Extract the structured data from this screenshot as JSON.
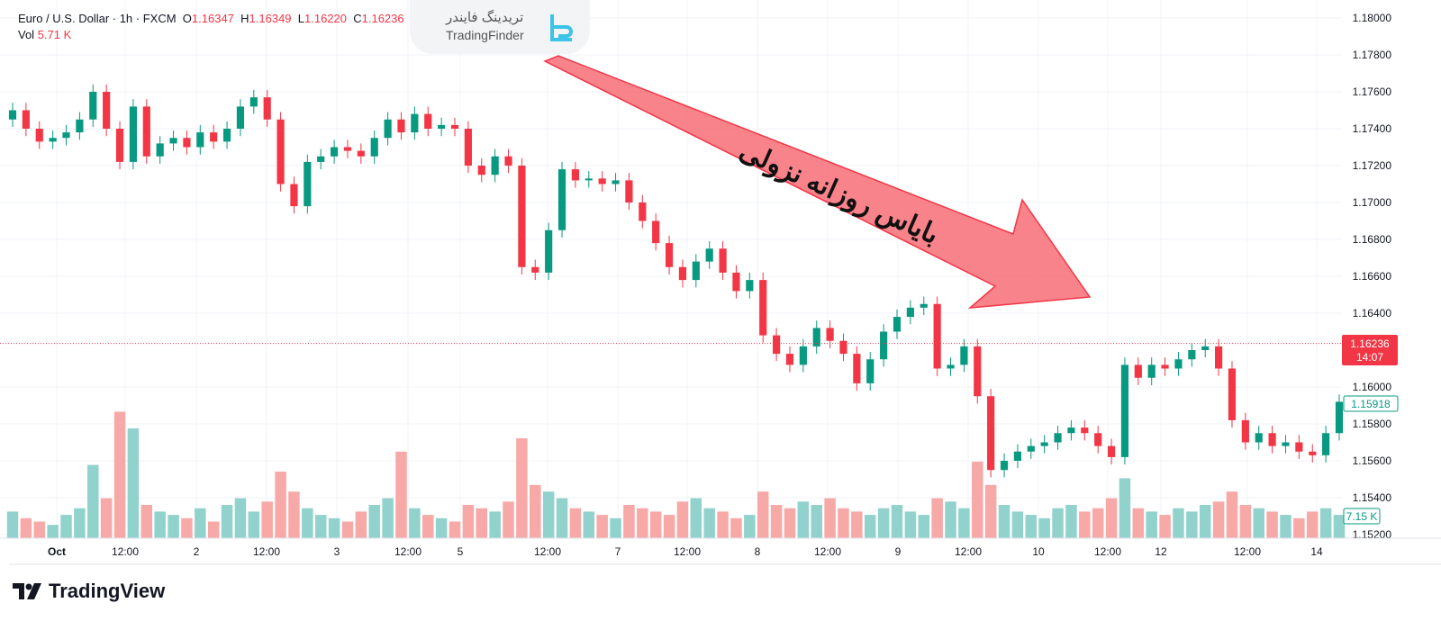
{
  "header": {
    "symbol": "Euro / U.S. Dollar · 1h · FXCM",
    "o_label": "O",
    "o": "1.16347",
    "h_label": "H",
    "h": "1.16349",
    "l_label": "L",
    "l": "1.16220",
    "c_label": "C",
    "c": "1.16236",
    "dash": "−",
    "vol_label": "Vol",
    "vol": "5.71 K"
  },
  "watermark": {
    "fa": "تریدینگ فایندر",
    "en": "TradingFinder"
  },
  "annotation": {
    "text": "بایاس روزانه نزولی",
    "color": "#f6646e"
  },
  "branding": {
    "name": "TradingView"
  },
  "colors": {
    "up": "#089981",
    "down": "#f23645",
    "vol_up": "#92d2cc",
    "vol_down": "#f7a9a7"
  },
  "chart_data": {
    "type": "candlestick",
    "ylim": [
      1.152,
      1.18
    ],
    "y_ticks": [
      "1.18000",
      "1.17800",
      "1.17600",
      "1.17400",
      "1.17200",
      "1.17000",
      "1.16800",
      "1.16600",
      "1.16400",
      "1.16000",
      "1.15800",
      "1.15600",
      "1.15400",
      "1.15200"
    ],
    "x_ticks": [
      "Oct",
      "12:00",
      "2",
      "12:00",
      "3",
      "12:00",
      "5",
      "12:00",
      "7",
      "12:00",
      "8",
      "12:00",
      "9",
      "12:00",
      "10",
      "12:00",
      "12",
      "12:00",
      "14"
    ],
    "last_price": {
      "value": "1.16236",
      "countdown": "14:07"
    },
    "current_close": "1.15918",
    "current_volume": "7.15 K",
    "first_open": 1.1745,
    "close": [
      1.175,
      1.174,
      1.1733,
      1.1735,
      1.1738,
      1.1745,
      1.176,
      1.174,
      1.1722,
      1.1752,
      1.1725,
      1.1732,
      1.1735,
      1.173,
      1.1738,
      1.1733,
      1.174,
      1.1752,
      1.1757,
      1.1745,
      1.171,
      1.1698,
      1.1722,
      1.1725,
      1.173,
      1.1728,
      1.1725,
      1.1735,
      1.1745,
      1.1738,
      1.1748,
      1.174,
      1.1742,
      1.174,
      1.172,
      1.1715,
      1.1725,
      1.172,
      1.1665,
      1.1662,
      1.1685,
      1.1718,
      1.1712,
      1.1713,
      1.171,
      1.1712,
      1.17,
      1.169,
      1.1678,
      1.1665,
      1.1658,
      1.1668,
      1.1675,
      1.1662,
      1.1652,
      1.1658,
      1.1628,
      1.1618,
      1.1612,
      1.1622,
      1.1632,
      1.1625,
      1.1618,
      1.1602,
      1.1615,
      1.163,
      1.1638,
      1.1643,
      1.1645,
      1.161,
      1.1612,
      1.1622,
      1.1595,
      1.1555,
      1.156,
      1.1565,
      1.1568,
      1.157,
      1.1575,
      1.1578,
      1.1575,
      1.1568,
      1.1562,
      1.1612,
      1.1605,
      1.1612,
      1.161,
      1.1615,
      1.162,
      1.1622,
      1.161,
      1.1582,
      1.157,
      1.1575,
      1.1568,
      1.157,
      1.1565,
      1.1563,
      1.1575,
      1.1592
    ],
    "volume_k": [
      8,
      6,
      5,
      4,
      7,
      9,
      22,
      12,
      38,
      33,
      10,
      8,
      7,
      6,
      9,
      5,
      10,
      12,
      8,
      11,
      20,
      14,
      9,
      7,
      6,
      5,
      8,
      10,
      12,
      26,
      9,
      7,
      6,
      5,
      10,
      9,
      8,
      11,
      30,
      16,
      14,
      12,
      9,
      8,
      7,
      6,
      10,
      9,
      8,
      7,
      11,
      12,
      9,
      8,
      6,
      7,
      14,
      10,
      9,
      11,
      10,
      12,
      9,
      8,
      7,
      9,
      10,
      8,
      7,
      12,
      11,
      9,
      23,
      16,
      10,
      8,
      7,
      6,
      9,
      10,
      8,
      9,
      12,
      18,
      9,
      8,
      7,
      9,
      8,
      10,
      11,
      14,
      10,
      9,
      8,
      7,
      6,
      8,
      9,
      7
    ]
  }
}
